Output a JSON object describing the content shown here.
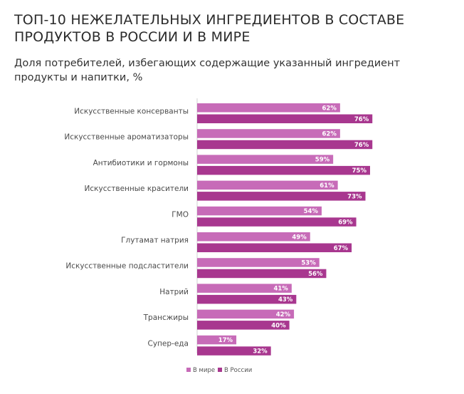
{
  "header": {
    "title": "ТОП-10 НЕЖЕЛАТЕЛЬНЫХ ИНГРЕДИЕНТОВ В СОСТАВЕ ПРОДУКТОВ В РОССИИ И В МИРЕ",
    "subtitle": "Доля потребителей,  избегающих  содержащие  указанный ингредиент продукты и напитки, %"
  },
  "colors": {
    "world": "#c76bb8",
    "russia": "#a8378f"
  },
  "chart_data": {
    "type": "bar",
    "orientation": "horizontal",
    "categories": [
      "Искусственные консерванты",
      "Искусственные ароматизаторы",
      "Антибиотики и гормоны",
      "Искусственные красители",
      "ГМО",
      "Глутамат натрия",
      "Искусственные подсластители",
      "Натрий",
      "Трансжиры",
      "Супер-еда"
    ],
    "series": [
      {
        "name": "В мире",
        "values": [
          62,
          62,
          59,
          61,
          54,
          49,
          53,
          41,
          42,
          17
        ]
      },
      {
        "name": "В России",
        "values": [
          76,
          76,
          75,
          73,
          69,
          67,
          56,
          43,
          40,
          32
        ]
      }
    ],
    "value_suffix": "%",
    "xlim": [
      0,
      100
    ],
    "grid": false,
    "legend_position": "bottom-center"
  }
}
